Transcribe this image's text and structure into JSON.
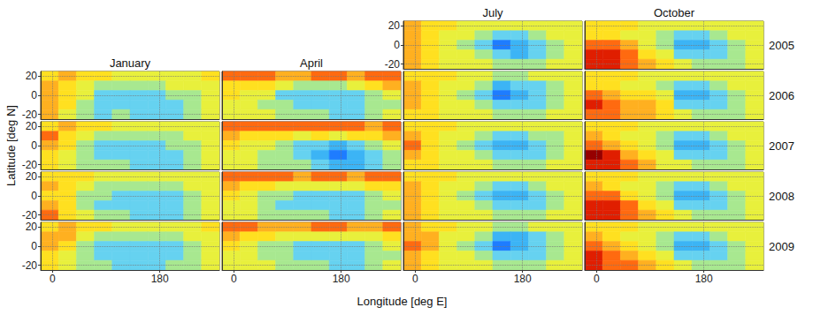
{
  "chart_data": {
    "type": "heatmap",
    "xlabel": "Longitude [deg E]",
    "ylabel": "Latitude [deg N]",
    "xlim": [
      -20,
      280
    ],
    "xticks": [
      0,
      180
    ],
    "ylim": [
      -25,
      25
    ],
    "yticks": [
      -20,
      0,
      20
    ],
    "grid": true,
    "columns": [
      "January",
      "April",
      "July",
      "October"
    ],
    "rows": [
      "2005",
      "2006",
      "2007",
      "2008",
      "2009"
    ],
    "lon_edges": [
      -20,
      10,
      40,
      70,
      100,
      130,
      160,
      190,
      220,
      250,
      280
    ],
    "lat_edges": [
      25,
      15,
      5,
      -5,
      -15,
      -25
    ],
    "color_range": [
      0,
      10
    ],
    "colors": [
      "#0a3cff",
      "#1e7cff",
      "#3cb4f5",
      "#66d2f0",
      "#a8e890",
      "#e8f03c",
      "#ffe020",
      "#ffb020",
      "#ff6a10",
      "#e01e00",
      "#960000"
    ],
    "panels": [
      {
        "month": "July",
        "year": "2005",
        "cells": [
          [
            7,
            6,
            6,
            5,
            5,
            5,
            5,
            5,
            5,
            5
          ],
          [
            7,
            6,
            5,
            5,
            4,
            3,
            3,
            4,
            5,
            5
          ],
          [
            7,
            6,
            5,
            4,
            3,
            1,
            2,
            3,
            4,
            5
          ],
          [
            7,
            6,
            5,
            5,
            4,
            3,
            2,
            3,
            4,
            5
          ],
          [
            7,
            6,
            5,
            5,
            5,
            4,
            4,
            4,
            5,
            5
          ]
        ]
      },
      {
        "month": "October",
        "year": "2005",
        "cells": [
          [
            6,
            6,
            6,
            5,
            5,
            5,
            5,
            5,
            5,
            5
          ],
          [
            6,
            6,
            5,
            5,
            4,
            3,
            3,
            4,
            5,
            5
          ],
          [
            8,
            8,
            7,
            5,
            4,
            2,
            2,
            3,
            4,
            5
          ],
          [
            9,
            9,
            8,
            6,
            5,
            3,
            3,
            3,
            4,
            5
          ],
          [
            9,
            9,
            8,
            7,
            6,
            5,
            4,
            4,
            4,
            5
          ]
        ]
      },
      {
        "month": "January",
        "year": "2006",
        "cells": [
          [
            6,
            7,
            6,
            6,
            5,
            5,
            5,
            5,
            5,
            6
          ],
          [
            7,
            6,
            5,
            4,
            4,
            4,
            4,
            5,
            5,
            5
          ],
          [
            7,
            6,
            5,
            3,
            3,
            3,
            3,
            4,
            4,
            5
          ],
          [
            7,
            6,
            4,
            3,
            3,
            3,
            3,
            3,
            4,
            5
          ],
          [
            7,
            5,
            4,
            3,
            4,
            3,
            3,
            3,
            4,
            5
          ]
        ]
      },
      {
        "month": "April",
        "year": "2006",
        "cells": [
          [
            8,
            8,
            8,
            7,
            7,
            8,
            8,
            7,
            8,
            8
          ],
          [
            6,
            6,
            6,
            5,
            4,
            4,
            4,
            5,
            6,
            7
          ],
          [
            6,
            5,
            5,
            3,
            3,
            3,
            3,
            3,
            4,
            5
          ],
          [
            5,
            5,
            4,
            4,
            3,
            3,
            3,
            3,
            4,
            4
          ],
          [
            5,
            5,
            5,
            4,
            4,
            4,
            3,
            3,
            4,
            5
          ]
        ]
      },
      {
        "month": "July",
        "year": "2006",
        "cells": [
          [
            6,
            6,
            6,
            5,
            5,
            4,
            4,
            5,
            5,
            5
          ],
          [
            7,
            6,
            5,
            5,
            4,
            2,
            3,
            3,
            4,
            5
          ],
          [
            7,
            6,
            5,
            4,
            3,
            1,
            2,
            3,
            4,
            5
          ],
          [
            7,
            6,
            5,
            5,
            4,
            3,
            3,
            3,
            4,
            5
          ],
          [
            6,
            6,
            5,
            5,
            5,
            4,
            4,
            4,
            5,
            5
          ]
        ]
      },
      {
        "month": "October",
        "year": "2006",
        "cells": [
          [
            6,
            6,
            6,
            5,
            5,
            5,
            5,
            5,
            5,
            5
          ],
          [
            6,
            6,
            5,
            5,
            4,
            3,
            3,
            4,
            5,
            5
          ],
          [
            8,
            7,
            6,
            6,
            5,
            2,
            2,
            3,
            4,
            5
          ],
          [
            9,
            8,
            7,
            7,
            6,
            3,
            3,
            3,
            4,
            5
          ],
          [
            8,
            8,
            7,
            7,
            6,
            5,
            4,
            4,
            4,
            5
          ]
        ]
      },
      {
        "month": "January",
        "year": "2007",
        "cells": [
          [
            6,
            7,
            6,
            6,
            5,
            5,
            5,
            5,
            5,
            5
          ],
          [
            8,
            6,
            5,
            4,
            4,
            4,
            4,
            4,
            5,
            5
          ],
          [
            7,
            6,
            4,
            3,
            3,
            3,
            3,
            4,
            4,
            5
          ],
          [
            6,
            5,
            4,
            3,
            3,
            3,
            3,
            3,
            4,
            5
          ],
          [
            6,
            5,
            4,
            4,
            4,
            3,
            3,
            3,
            4,
            5
          ]
        ]
      },
      {
        "month": "April",
        "year": "2007",
        "cells": [
          [
            8,
            8,
            8,
            8,
            8,
            8,
            8,
            8,
            7,
            8
          ],
          [
            7,
            6,
            6,
            6,
            5,
            6,
            5,
            6,
            6,
            7
          ],
          [
            6,
            5,
            5,
            4,
            3,
            3,
            2,
            3,
            4,
            5
          ],
          [
            5,
            5,
            4,
            4,
            3,
            2,
            1,
            2,
            3,
            4
          ],
          [
            5,
            5,
            4,
            4,
            4,
            3,
            2,
            2,
            3,
            4
          ]
        ]
      },
      {
        "month": "July",
        "year": "2007",
        "cells": [
          [
            6,
            6,
            6,
            5,
            5,
            5,
            5,
            5,
            5,
            5
          ],
          [
            7,
            6,
            5,
            5,
            4,
            3,
            3,
            4,
            4,
            5
          ],
          [
            8,
            6,
            5,
            4,
            3,
            2,
            2,
            3,
            4,
            5
          ],
          [
            7,
            6,
            5,
            5,
            4,
            3,
            3,
            3,
            4,
            5
          ],
          [
            6,
            6,
            5,
            5,
            5,
            4,
            4,
            4,
            5,
            5
          ]
        ]
      },
      {
        "month": "October",
        "year": "2007",
        "cells": [
          [
            6,
            6,
            6,
            5,
            5,
            5,
            5,
            5,
            5,
            5
          ],
          [
            7,
            6,
            5,
            5,
            4,
            3,
            3,
            4,
            5,
            5
          ],
          [
            8,
            7,
            6,
            5,
            4,
            2,
            2,
            3,
            4,
            5
          ],
          [
            10,
            9,
            7,
            6,
            5,
            3,
            3,
            3,
            4,
            5
          ],
          [
            9,
            9,
            8,
            7,
            5,
            5,
            4,
            4,
            4,
            5
          ]
        ]
      },
      {
        "month": "January",
        "year": "2008",
        "cells": [
          [
            6,
            6,
            6,
            5,
            5,
            5,
            5,
            5,
            5,
            5
          ],
          [
            7,
            6,
            5,
            4,
            4,
            4,
            4,
            4,
            5,
            5
          ],
          [
            6,
            6,
            4,
            4,
            3,
            3,
            3,
            3,
            4,
            5
          ],
          [
            7,
            6,
            4,
            3,
            3,
            3,
            3,
            3,
            4,
            5
          ],
          [
            8,
            6,
            5,
            4,
            4,
            3,
            3,
            3,
            4,
            5
          ]
        ]
      },
      {
        "month": "April",
        "year": "2008",
        "cells": [
          [
            8,
            8,
            8,
            8,
            7,
            8,
            8,
            7,
            8,
            8
          ],
          [
            7,
            6,
            6,
            5,
            5,
            5,
            5,
            5,
            6,
            6
          ],
          [
            6,
            5,
            4,
            4,
            3,
            3,
            3,
            3,
            4,
            5
          ],
          [
            5,
            5,
            4,
            3,
            3,
            3,
            3,
            3,
            4,
            4
          ],
          [
            5,
            5,
            4,
            4,
            4,
            4,
            3,
            3,
            4,
            5
          ]
        ]
      },
      {
        "month": "July",
        "year": "2008",
        "cells": [
          [
            6,
            6,
            6,
            5,
            5,
            5,
            5,
            5,
            5,
            5
          ],
          [
            7,
            6,
            5,
            5,
            4,
            3,
            3,
            4,
            5,
            5
          ],
          [
            7,
            6,
            5,
            4,
            3,
            2,
            2,
            3,
            4,
            5
          ],
          [
            7,
            6,
            5,
            5,
            4,
            3,
            3,
            3,
            4,
            5
          ],
          [
            7,
            6,
            5,
            5,
            5,
            4,
            4,
            4,
            5,
            5
          ]
        ]
      },
      {
        "month": "October",
        "year": "2008",
        "cells": [
          [
            6,
            6,
            6,
            5,
            5,
            5,
            5,
            5,
            5,
            5
          ],
          [
            7,
            6,
            5,
            5,
            4,
            3,
            3,
            4,
            5,
            5
          ],
          [
            8,
            8,
            6,
            5,
            4,
            2,
            2,
            3,
            4,
            5
          ],
          [
            9,
            9,
            8,
            6,
            5,
            3,
            3,
            3,
            4,
            5
          ],
          [
            9,
            9,
            8,
            7,
            6,
            5,
            4,
            4,
            4,
            5
          ]
        ]
      },
      {
        "month": "January",
        "year": "2009",
        "cells": [
          [
            6,
            7,
            6,
            6,
            5,
            5,
            5,
            5,
            5,
            6
          ],
          [
            7,
            7,
            5,
            4,
            4,
            4,
            4,
            4,
            5,
            5
          ],
          [
            7,
            6,
            4,
            3,
            3,
            3,
            3,
            3,
            4,
            5
          ],
          [
            6,
            5,
            4,
            3,
            3,
            3,
            3,
            3,
            4,
            5
          ],
          [
            6,
            5,
            4,
            4,
            3,
            3,
            3,
            4,
            4,
            5
          ]
        ]
      },
      {
        "month": "April",
        "year": "2009",
        "cells": [
          [
            8,
            8,
            7,
            7,
            7,
            8,
            8,
            7,
            7,
            8
          ],
          [
            7,
            6,
            6,
            5,
            5,
            5,
            5,
            5,
            5,
            6
          ],
          [
            6,
            5,
            4,
            4,
            3,
            3,
            3,
            3,
            4,
            5
          ],
          [
            5,
            5,
            4,
            4,
            3,
            3,
            3,
            3,
            4,
            4
          ],
          [
            5,
            5,
            5,
            4,
            4,
            4,
            3,
            3,
            4,
            5
          ]
        ]
      },
      {
        "month": "July",
        "year": "2009",
        "cells": [
          [
            7,
            6,
            6,
            5,
            5,
            4,
            4,
            5,
            5,
            5
          ],
          [
            7,
            7,
            5,
            5,
            4,
            2,
            2,
            3,
            4,
            5
          ],
          [
            8,
            7,
            5,
            4,
            3,
            1,
            2,
            3,
            4,
            5
          ],
          [
            7,
            6,
            5,
            5,
            4,
            3,
            3,
            3,
            4,
            5
          ],
          [
            7,
            6,
            5,
            5,
            5,
            4,
            4,
            4,
            5,
            5
          ]
        ]
      },
      {
        "month": "October",
        "year": "2009",
        "cells": [
          [
            6,
            6,
            6,
            5,
            5,
            5,
            5,
            5,
            5,
            5
          ],
          [
            7,
            6,
            5,
            5,
            4,
            3,
            3,
            4,
            5,
            5
          ],
          [
            8,
            7,
            6,
            5,
            4,
            2,
            2,
            3,
            4,
            5
          ],
          [
            9,
            8,
            7,
            6,
            5,
            3,
            3,
            3,
            4,
            5
          ],
          [
            9,
            8,
            8,
            7,
            6,
            5,
            4,
            4,
            4,
            5
          ]
        ]
      }
    ]
  }
}
